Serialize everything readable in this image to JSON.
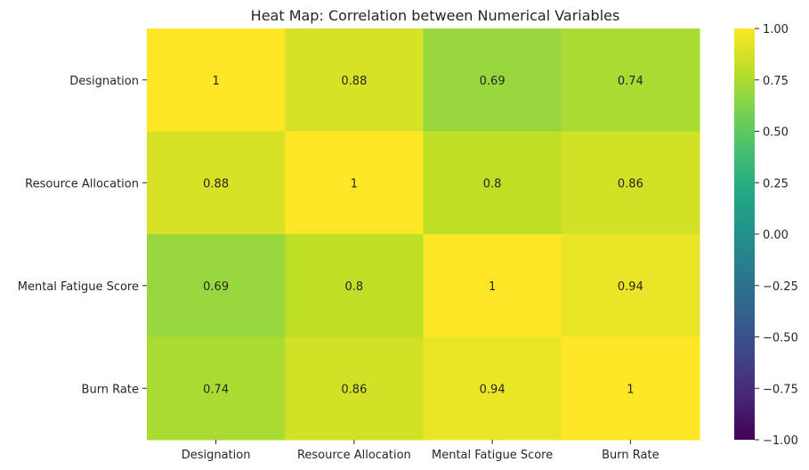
{
  "chart_data": {
    "type": "heatmap",
    "title": "Heat Map: Correlation between Numerical Variables",
    "rows": [
      "Designation",
      "Resource Allocation",
      "Mental Fatigue Score",
      "Burn Rate"
    ],
    "columns": [
      "Designation",
      "Resource Allocation",
      "Mental Fatigue Score",
      "Burn Rate"
    ],
    "values": [
      [
        1,
        0.88,
        0.69,
        0.74
      ],
      [
        0.88,
        1,
        0.8,
        0.86
      ],
      [
        0.69,
        0.8,
        1,
        0.94
      ],
      [
        0.74,
        0.86,
        0.94,
        1
      ]
    ],
    "cell_labels": [
      [
        "1",
        "0.88",
        "0.69",
        "0.74"
      ],
      [
        "0.88",
        "1",
        "0.8",
        "0.86"
      ],
      [
        "0.69",
        "0.8",
        "1",
        "0.94"
      ],
      [
        "0.74",
        "0.86",
        "0.94",
        "1"
      ]
    ],
    "colormap": "viridis",
    "vmin": -1,
    "vmax": 1,
    "colorbar_ticks": [
      1.0,
      0.75,
      0.5,
      0.25,
      0.0,
      -0.25,
      -0.5,
      -0.75,
      -1.0
    ],
    "colorbar_tick_labels": [
      "1.00",
      "0.75",
      "0.50",
      "0.25",
      "0.00",
      "−0.25",
      "−0.50",
      "−0.75",
      "−1.00"
    ]
  }
}
